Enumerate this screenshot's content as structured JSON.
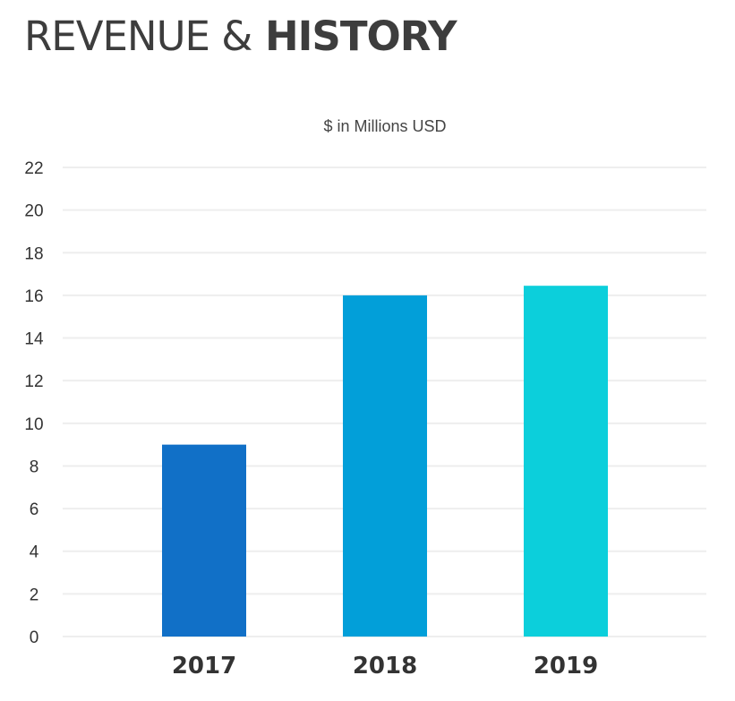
{
  "header": {
    "title_light": "REVENUE &",
    "title_bold": "HISTORY"
  },
  "chart_data": {
    "type": "bar",
    "title": "REVENUE & HISTORY",
    "subtitle": "$ in Millions USD",
    "categories": [
      "2017",
      "2018",
      "2019"
    ],
    "values": [
      9,
      16,
      16.45
    ],
    "colors": [
      "#1170c7",
      "#029fd9",
      "#0ccfdb"
    ],
    "ylim": [
      0,
      22
    ],
    "yticks": [
      0,
      2,
      4,
      6,
      8,
      10,
      12,
      14,
      16,
      18,
      20,
      22
    ],
    "grid": true,
    "gridColor": "#eeeeee",
    "legend": "none"
  }
}
